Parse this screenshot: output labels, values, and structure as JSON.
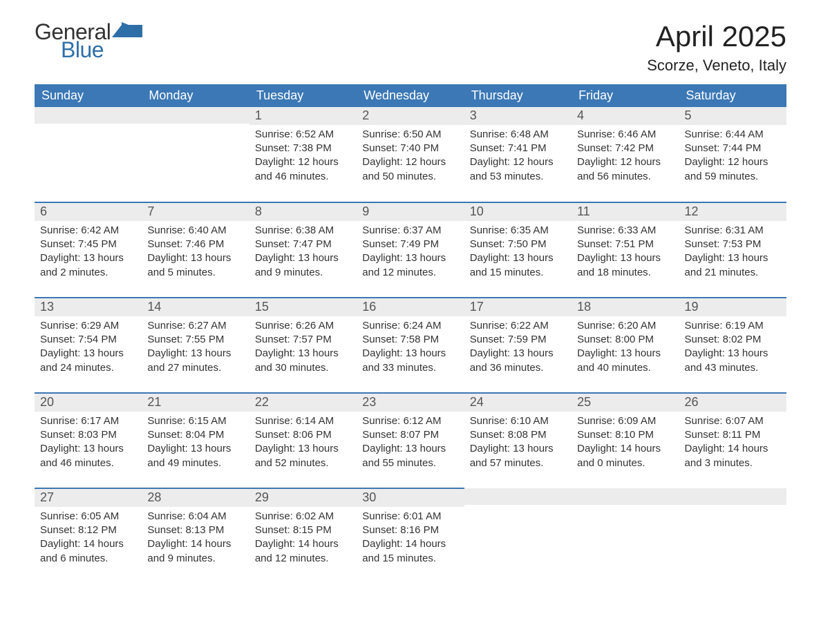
{
  "colors": {
    "header_blue": "#3b78b5",
    "accent_blue": "#3b78b5",
    "daynum_bg": "#ececec",
    "body_bg": "#ffffff",
    "text_dark": "#333333",
    "logo_blue": "#2f6fa8"
  },
  "logo": {
    "line1": "General",
    "line2": "Blue"
  },
  "title": "April 2025",
  "location": "Scorze, Veneto, Italy",
  "weekdays": [
    "Sunday",
    "Monday",
    "Tuesday",
    "Wednesday",
    "Thursday",
    "Friday",
    "Saturday"
  ],
  "weeks": [
    [
      {
        "day": "",
        "sunrise": "",
        "sunset": "",
        "daylight": ""
      },
      {
        "day": "",
        "sunrise": "",
        "sunset": "",
        "daylight": ""
      },
      {
        "day": "1",
        "sunrise": "Sunrise: 6:52 AM",
        "sunset": "Sunset: 7:38 PM",
        "daylight": "Daylight: 12 hours and 46 minutes."
      },
      {
        "day": "2",
        "sunrise": "Sunrise: 6:50 AM",
        "sunset": "Sunset: 7:40 PM",
        "daylight": "Daylight: 12 hours and 50 minutes."
      },
      {
        "day": "3",
        "sunrise": "Sunrise: 6:48 AM",
        "sunset": "Sunset: 7:41 PM",
        "daylight": "Daylight: 12 hours and 53 minutes."
      },
      {
        "day": "4",
        "sunrise": "Sunrise: 6:46 AM",
        "sunset": "Sunset: 7:42 PM",
        "daylight": "Daylight: 12 hours and 56 minutes."
      },
      {
        "day": "5",
        "sunrise": "Sunrise: 6:44 AM",
        "sunset": "Sunset: 7:44 PM",
        "daylight": "Daylight: 12 hours and 59 minutes."
      }
    ],
    [
      {
        "day": "6",
        "sunrise": "Sunrise: 6:42 AM",
        "sunset": "Sunset: 7:45 PM",
        "daylight": "Daylight: 13 hours and 2 minutes."
      },
      {
        "day": "7",
        "sunrise": "Sunrise: 6:40 AM",
        "sunset": "Sunset: 7:46 PM",
        "daylight": "Daylight: 13 hours and 5 minutes."
      },
      {
        "day": "8",
        "sunrise": "Sunrise: 6:38 AM",
        "sunset": "Sunset: 7:47 PM",
        "daylight": "Daylight: 13 hours and 9 minutes."
      },
      {
        "day": "9",
        "sunrise": "Sunrise: 6:37 AM",
        "sunset": "Sunset: 7:49 PM",
        "daylight": "Daylight: 13 hours and 12 minutes."
      },
      {
        "day": "10",
        "sunrise": "Sunrise: 6:35 AM",
        "sunset": "Sunset: 7:50 PM",
        "daylight": "Daylight: 13 hours and 15 minutes."
      },
      {
        "day": "11",
        "sunrise": "Sunrise: 6:33 AM",
        "sunset": "Sunset: 7:51 PM",
        "daylight": "Daylight: 13 hours and 18 minutes."
      },
      {
        "day": "12",
        "sunrise": "Sunrise: 6:31 AM",
        "sunset": "Sunset: 7:53 PM",
        "daylight": "Daylight: 13 hours and 21 minutes."
      }
    ],
    [
      {
        "day": "13",
        "sunrise": "Sunrise: 6:29 AM",
        "sunset": "Sunset: 7:54 PM",
        "daylight": "Daylight: 13 hours and 24 minutes."
      },
      {
        "day": "14",
        "sunrise": "Sunrise: 6:27 AM",
        "sunset": "Sunset: 7:55 PM",
        "daylight": "Daylight: 13 hours and 27 minutes."
      },
      {
        "day": "15",
        "sunrise": "Sunrise: 6:26 AM",
        "sunset": "Sunset: 7:57 PM",
        "daylight": "Daylight: 13 hours and 30 minutes."
      },
      {
        "day": "16",
        "sunrise": "Sunrise: 6:24 AM",
        "sunset": "Sunset: 7:58 PM",
        "daylight": "Daylight: 13 hours and 33 minutes."
      },
      {
        "day": "17",
        "sunrise": "Sunrise: 6:22 AM",
        "sunset": "Sunset: 7:59 PM",
        "daylight": "Daylight: 13 hours and 36 minutes."
      },
      {
        "day": "18",
        "sunrise": "Sunrise: 6:20 AM",
        "sunset": "Sunset: 8:00 PM",
        "daylight": "Daylight: 13 hours and 40 minutes."
      },
      {
        "day": "19",
        "sunrise": "Sunrise: 6:19 AM",
        "sunset": "Sunset: 8:02 PM",
        "daylight": "Daylight: 13 hours and 43 minutes."
      }
    ],
    [
      {
        "day": "20",
        "sunrise": "Sunrise: 6:17 AM",
        "sunset": "Sunset: 8:03 PM",
        "daylight": "Daylight: 13 hours and 46 minutes."
      },
      {
        "day": "21",
        "sunrise": "Sunrise: 6:15 AM",
        "sunset": "Sunset: 8:04 PM",
        "daylight": "Daylight: 13 hours and 49 minutes."
      },
      {
        "day": "22",
        "sunrise": "Sunrise: 6:14 AM",
        "sunset": "Sunset: 8:06 PM",
        "daylight": "Daylight: 13 hours and 52 minutes."
      },
      {
        "day": "23",
        "sunrise": "Sunrise: 6:12 AM",
        "sunset": "Sunset: 8:07 PM",
        "daylight": "Daylight: 13 hours and 55 minutes."
      },
      {
        "day": "24",
        "sunrise": "Sunrise: 6:10 AM",
        "sunset": "Sunset: 8:08 PM",
        "daylight": "Daylight: 13 hours and 57 minutes."
      },
      {
        "day": "25",
        "sunrise": "Sunrise: 6:09 AM",
        "sunset": "Sunset: 8:10 PM",
        "daylight": "Daylight: 14 hours and 0 minutes."
      },
      {
        "day": "26",
        "sunrise": "Sunrise: 6:07 AM",
        "sunset": "Sunset: 8:11 PM",
        "daylight": "Daylight: 14 hours and 3 minutes."
      }
    ],
    [
      {
        "day": "27",
        "sunrise": "Sunrise: 6:05 AM",
        "sunset": "Sunset: 8:12 PM",
        "daylight": "Daylight: 14 hours and 6 minutes."
      },
      {
        "day": "28",
        "sunrise": "Sunrise: 6:04 AM",
        "sunset": "Sunset: 8:13 PM",
        "daylight": "Daylight: 14 hours and 9 minutes."
      },
      {
        "day": "29",
        "sunrise": "Sunrise: 6:02 AM",
        "sunset": "Sunset: 8:15 PM",
        "daylight": "Daylight: 14 hours and 12 minutes."
      },
      {
        "day": "30",
        "sunrise": "Sunrise: 6:01 AM",
        "sunset": "Sunset: 8:16 PM",
        "daylight": "Daylight: 14 hours and 15 minutes."
      },
      {
        "day": "",
        "sunrise": "",
        "sunset": "",
        "daylight": ""
      },
      {
        "day": "",
        "sunrise": "",
        "sunset": "",
        "daylight": ""
      },
      {
        "day": "",
        "sunrise": "",
        "sunset": "",
        "daylight": ""
      }
    ]
  ]
}
